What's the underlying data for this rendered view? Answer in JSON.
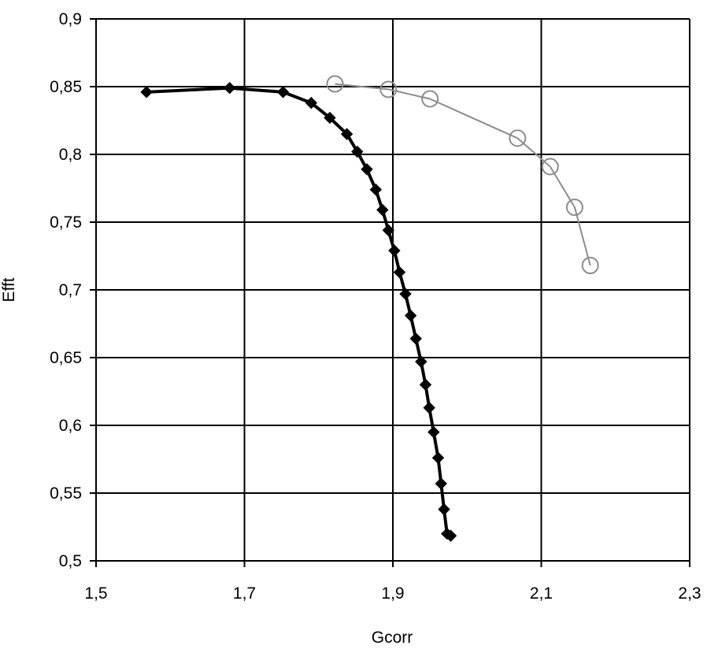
{
  "chart_data": {
    "type": "line",
    "title": "",
    "xlabel": "Gcorr",
    "ylabel": "Efft",
    "xlim": [
      1.5,
      2.3
    ],
    "ylim": [
      0.5,
      0.9
    ],
    "xticks": [
      1.5,
      1.7,
      1.9,
      2.1,
      2.3
    ],
    "xtick_labels": [
      "1,5",
      "1,7",
      "1,9",
      "2,1",
      "2,3"
    ],
    "yticks": [
      0.5,
      0.55,
      0.6,
      0.65,
      0.7,
      0.75,
      0.8,
      0.85,
      0.9
    ],
    "ytick_labels": [
      "0,5",
      "0,55",
      "0,6",
      "0,65",
      "0,7",
      "0,75",
      "0,8",
      "0,85",
      "0,9"
    ],
    "grid": true,
    "legend": "none",
    "series": [
      {
        "marker": "filled-diamond",
        "color": "#000000",
        "x": [
          1.568,
          1.68,
          1.752,
          1.79,
          1.815,
          1.838,
          1.852,
          1.865,
          1.877,
          1.886,
          1.894,
          1.902,
          1.909,
          1.917,
          1.924,
          1.931,
          1.938,
          1.944,
          1.949,
          1.955,
          1.961,
          1.965,
          1.969,
          1.973,
          1.978
        ],
        "y": [
          0.846,
          0.849,
          0.846,
          0.838,
          0.827,
          0.815,
          0.802,
          0.789,
          0.774,
          0.759,
          0.744,
          0.729,
          0.713,
          0.697,
          0.681,
          0.664,
          0.647,
          0.63,
          0.613,
          0.595,
          0.576,
          0.557,
          0.538,
          0.52,
          0.5185
        ]
      },
      {
        "marker": "open-circle",
        "color": "#8c8c8c",
        "x": [
          1.822,
          1.894,
          1.95,
          2.068,
          2.112,
          2.145,
          2.166
        ],
        "y": [
          0.852,
          0.848,
          0.841,
          0.812,
          0.791,
          0.761,
          0.718
        ]
      }
    ]
  }
}
